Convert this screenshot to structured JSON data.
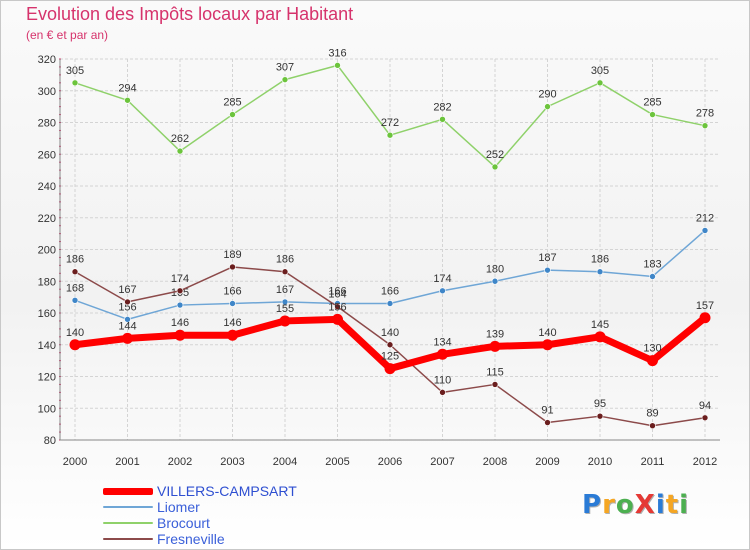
{
  "title": "Evolution des Impôts locaux par Habitant",
  "subtitle": "(en € et par an)",
  "logo": {
    "text": "ProXiti",
    "colors": [
      "#2a7bd6",
      "#f5a623",
      "#4caf50",
      "#e53935",
      "#2a7bd6",
      "#f5a623",
      "#4caf50"
    ]
  },
  "chart_data": {
    "type": "line",
    "title": "Evolution des Impôts locaux par Habitant",
    "subtitle": "(en € et par an)",
    "xlabel": "",
    "ylabel": "",
    "ylim": [
      80,
      320
    ],
    "ytick_step": 20,
    "grid": true,
    "legend_position": "bottom-left",
    "categories": [
      "2000",
      "2001",
      "2002",
      "2003",
      "2004",
      "2005",
      "2006",
      "2007",
      "2008",
      "2009",
      "2010",
      "2011",
      "2012"
    ],
    "series": [
      {
        "name": "Brocourt",
        "color": "#8fd16a",
        "marker": "#6cc43c",
        "width": 1.5,
        "values": [
          305,
          294,
          262,
          285,
          307,
          316,
          272,
          282,
          252,
          290,
          305,
          285,
          278
        ]
      },
      {
        "name": "Liomer",
        "color": "#6fa6d6",
        "marker": "#3f86c8",
        "width": 1.5,
        "values": [
          168,
          156,
          165,
          166,
          167,
          166,
          166,
          174,
          180,
          187,
          186,
          183,
          212
        ],
        "labels": [
          "168",
          "156",
          "165",
          "166",
          "167",
          "166",
          "166",
          "174",
          "180",
          "187",
          "186",
          "183",
          "212"
        ]
      },
      {
        "name": "Fresneville",
        "color": "#8c4a4a",
        "marker": "#6b1e1e",
        "width": 1.5,
        "values": [
          186,
          167,
          174,
          189,
          186,
          164,
          140,
          110,
          115,
          91,
          95,
          89,
          94
        ]
      },
      {
        "name": "VILLERS-CAMPSART",
        "color": "#ff0000",
        "marker": "#ff0000",
        "width": 7,
        "values": [
          140,
          144,
          146,
          146,
          155,
          156,
          125,
          134,
          139,
          140,
          145,
          130,
          157
        ]
      }
    ],
    "legend": [
      {
        "name": "VILLERS-CAMPSART",
        "color": "#ff0000"
      },
      {
        "name": "Liomer",
        "color": "#6fa6d6"
      },
      {
        "name": "Brocourt",
        "color": "#8fd16a"
      },
      {
        "name": "Fresneville",
        "color": "#8c4a4a"
      }
    ]
  }
}
